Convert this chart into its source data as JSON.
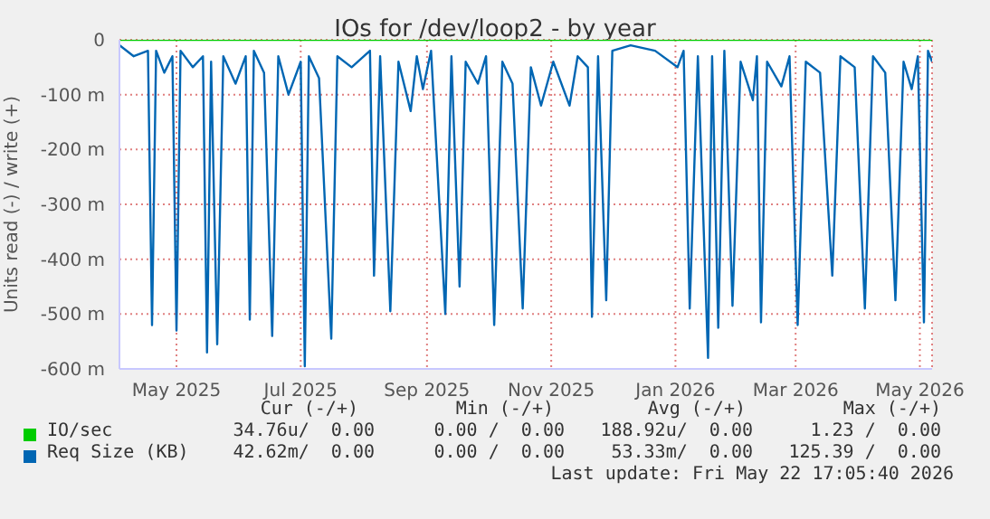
{
  "chart_data": {
    "type": "line",
    "title": "IOs for /dev/loop2 - by year",
    "ylabel": "Units read (-) / write (+)",
    "xlim": [
      "2025-04-18",
      "2026-05-22"
    ],
    "xticks": [
      {
        "value": "2025-05-16",
        "label": "May 2025"
      },
      {
        "value": "2025-07-16",
        "label": "Jul 2025"
      },
      {
        "value": "2025-09-16",
        "label": "Sep 2025"
      },
      {
        "value": "2025-11-16",
        "label": "Nov 2025"
      },
      {
        "value": "2026-01-16",
        "label": "Jan 2026"
      },
      {
        "value": "2026-03-16",
        "label": "Mar 2026"
      },
      {
        "value": "2026-05-16",
        "label": "May 2026"
      }
    ],
    "ylim": [
      -600,
      0
    ],
    "yticks": [
      0,
      {
        "value": -100,
        "label": "-100 m"
      },
      {
        "value": -200,
        "label": "-200 m"
      },
      {
        "value": -300,
        "label": "-300 m"
      },
      {
        "value": -400,
        "label": "-400 m"
      },
      {
        "value": -500,
        "label": "-500 m"
      },
      {
        "value": -600,
        "label": "-600 m"
      }
    ],
    "grid": true,
    "legend": "bottom",
    "series": [
      {
        "name": "IO/sec",
        "color": "#00cc00",
        "x": [
          "2025-04-18",
          "2025-09-01",
          "2026-01-01",
          "2026-05-22"
        ],
        "values": [
          0,
          0,
          0,
          0
        ]
      },
      {
        "name": "Req Size (KB)",
        "color": "#0066b3",
        "x": [
          "2025-04-18",
          "2025-04-25",
          "2025-05-02",
          "2025-05-04",
          "2025-05-06",
          "2025-05-10",
          "2025-05-14",
          "2025-05-16",
          "2025-05-18",
          "2025-05-24",
          "2025-05-29",
          "2025-05-31",
          "2025-06-02",
          "2025-06-05",
          "2025-06-08",
          "2025-06-14",
          "2025-06-19",
          "2025-06-21",
          "2025-06-23",
          "2025-06-28",
          "2025-07-02",
          "2025-07-05",
          "2025-07-10",
          "2025-07-16",
          "2025-07-18",
          "2025-07-20",
          "2025-07-25",
          "2025-07-31",
          "2025-08-03",
          "2025-08-10",
          "2025-08-19",
          "2025-08-21",
          "2025-08-24",
          "2025-08-29",
          "2025-09-02",
          "2025-09-08",
          "2025-09-11",
          "2025-09-14",
          "2025-09-18",
          "2025-09-25",
          "2025-09-28",
          "2025-10-02",
          "2025-10-05",
          "2025-10-11",
          "2025-10-15",
          "2025-10-19",
          "2025-10-23",
          "2025-10-28",
          "2025-11-02",
          "2025-11-06",
          "2025-11-11",
          "2025-11-17",
          "2025-11-25",
          "2025-11-29",
          "2025-12-04",
          "2025-12-06",
          "2025-12-09",
          "2025-12-13",
          "2025-12-16",
          "2025-12-25",
          "2026-01-06",
          "2026-01-17",
          "2026-01-20",
          "2026-01-23",
          "2026-01-27",
          "2026-02-01",
          "2026-02-03",
          "2026-02-06",
          "2026-02-09",
          "2026-02-13",
          "2026-02-17",
          "2026-02-23",
          "2026-02-25",
          "2026-02-27",
          "2026-03-02",
          "2026-03-09",
          "2026-03-13",
          "2026-03-17",
          "2026-03-21",
          "2026-03-28",
          "2026-04-03",
          "2026-04-07",
          "2026-04-14",
          "2026-04-19",
          "2026-04-23",
          "2026-04-29",
          "2026-05-04",
          "2026-05-08",
          "2026-05-12",
          "2026-05-15",
          "2026-05-18",
          "2026-05-20",
          "2026-05-22"
        ],
        "values": [
          -10,
          -30,
          -20,
          -520,
          -20,
          -60,
          -30,
          -530,
          -20,
          -50,
          -30,
          -570,
          -40,
          -555,
          -30,
          -80,
          -30,
          -510,
          -20,
          -60,
          -540,
          -30,
          -100,
          -40,
          -595,
          -30,
          -70,
          -545,
          -30,
          -50,
          -20,
          -430,
          -30,
          -495,
          -40,
          -130,
          -30,
          -90,
          -20,
          -500,
          -30,
          -450,
          -40,
          -80,
          -30,
          -520,
          -40,
          -80,
          -490,
          -50,
          -120,
          -40,
          -120,
          -30,
          -50,
          -505,
          -30,
          -475,
          -20,
          -10,
          -20,
          -50,
          -20,
          -490,
          -30,
          -580,
          -30,
          -525,
          -20,
          -485,
          -40,
          -110,
          -30,
          -515,
          -40,
          -85,
          -30,
          -520,
          -40,
          -60,
          -430,
          -30,
          -50,
          -490,
          -30,
          -60,
          -475,
          -40,
          -90,
          -30,
          -515,
          -20,
          -40
        ]
      }
    ],
    "annotations": [
      "Cur (-/+)",
      "Min (-/+)",
      "Avg (-/+)",
      "Max (-/+)",
      "34.76u/  0.00",
      "0.00 /  0.00",
      "188.92u/  0.00",
      "1.23 /  0.00",
      "42.62m/  0.00",
      "0.00 /  0.00",
      "53.33m/  0.00",
      "125.39 /  0.00",
      "Last update: Fri May 22 17:05:40 2026"
    ]
  }
}
